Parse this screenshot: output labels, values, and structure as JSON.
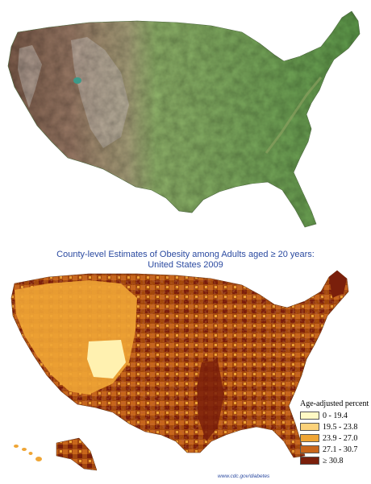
{
  "obesity_map": {
    "title_line1": "County-level Estimates of Obesity among Adults aged ≥ 20 years:",
    "title_line2": "United States 2009",
    "legend": {
      "title": "Age-adjusted percent",
      "items": [
        {
          "label": "0 - 19.4",
          "color": "#fff9c4"
        },
        {
          "label": "19.5 - 23.8",
          "color": "#fbd27a"
        },
        {
          "label": "23.9 - 27.0",
          "color": "#efa535"
        },
        {
          "label": "27.1 - 30.7",
          "color": "#c8661b"
        },
        {
          "label": "≥ 30.8",
          "color": "#7a1f0b"
        }
      ]
    },
    "source": "www.cdc.gov/diabetes"
  },
  "relief_map": {
    "colors": {
      "lowland": "#6fa356",
      "plains": "#a8b777",
      "mountain": "#8b6a58",
      "peak": "#d8d2cc",
      "lake": "#3d9a8a"
    }
  }
}
